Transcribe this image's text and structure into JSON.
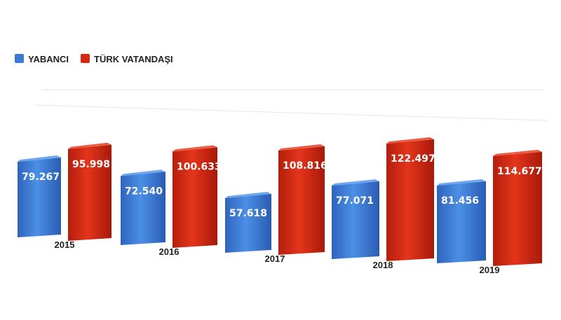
{
  "chart_data": {
    "type": "bar",
    "categories": [
      "2015",
      "2016",
      "2017",
      "2018",
      "2019"
    ],
    "series": [
      {
        "name": "YABANCI",
        "values": [
          79267,
          72540,
          57618,
          77071,
          81456
        ],
        "labels": [
          "79.267",
          "72.540",
          "57.618",
          "77.071",
          "81.456"
        ],
        "color": "#3a7ad6"
      },
      {
        "name": "TÜRK VATANDAŞI",
        "values": [
          95998,
          100633,
          108816,
          122497,
          114677
        ],
        "labels": [
          "95.998",
          "100.633",
          "108.816",
          "122.497",
          "114.677"
        ],
        "color": "#d42a14"
      }
    ],
    "ylim": [
      0,
      140000
    ],
    "grid": true,
    "legend_position": "top-left",
    "style": "3d-perspective"
  }
}
